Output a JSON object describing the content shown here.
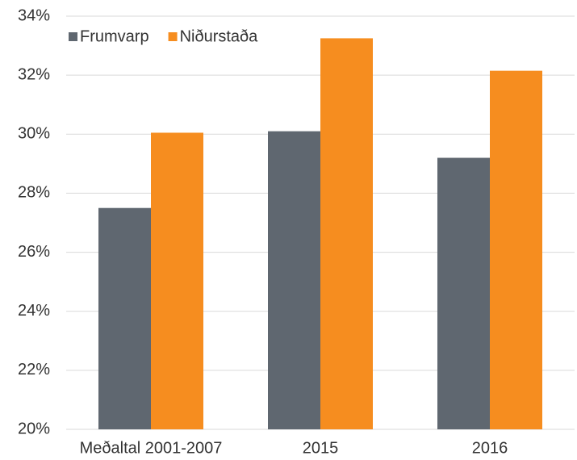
{
  "chart_data": {
    "type": "bar",
    "categories": [
      "Meðaltal 2001-2007",
      "2015",
      "2016"
    ],
    "series": [
      {
        "name": "Frumvarp",
        "color": "#5f6770",
        "values": [
          27.5,
          30.1,
          29.2
        ]
      },
      {
        "name": "Niðurstaða",
        "color": "#f68d1f",
        "values": [
          30.05,
          33.25,
          32.15
        ]
      }
    ],
    "ylim": [
      20,
      34
    ],
    "yticks": [
      {
        "value": 20,
        "label": "20%"
      },
      {
        "value": 22,
        "label": "22%"
      },
      {
        "value": 24,
        "label": "24%"
      },
      {
        "value": 26,
        "label": "26%"
      },
      {
        "value": 28,
        "label": "28%"
      },
      {
        "value": 30,
        "label": "30%"
      },
      {
        "value": 32,
        "label": "32%"
      },
      {
        "value": 34,
        "label": "34%"
      }
    ],
    "grid": true,
    "legend": "top-left"
  }
}
